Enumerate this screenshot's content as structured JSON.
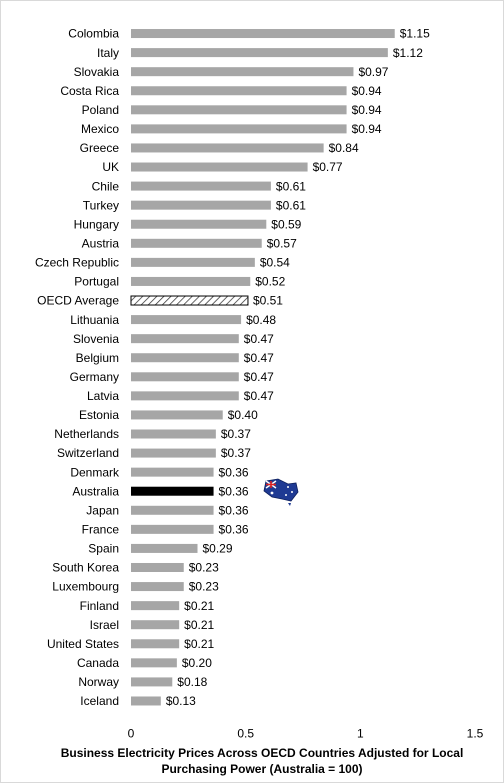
{
  "chart_data": {
    "type": "hbar",
    "title": "Business Electricity Prices Across OECD Countries Adjusted for Local Purchasing Power (Australia = 100)",
    "categories": [
      "Colombia",
      "Italy",
      "Slovakia",
      "Costa Rica",
      "Poland",
      "Mexico",
      "Greece",
      "UK",
      "Chile",
      "Turkey",
      "Hungary",
      "Austria",
      "Czech Republic",
      "Portugal",
      "OECD Average",
      "Lithuania",
      "Slovenia",
      "Belgium",
      "Germany",
      "Latvia",
      "Estonia",
      "Netherlands",
      "Switzerland",
      "Denmark",
      "Australia",
      "Japan",
      "France",
      "Spain",
      "South Korea",
      "Luxembourg",
      "Finland",
      "Israel",
      "United States",
      "Canada",
      "Norway",
      "Iceland"
    ],
    "values": [
      1.15,
      1.12,
      0.97,
      0.94,
      0.94,
      0.94,
      0.84,
      0.77,
      0.61,
      0.61,
      0.59,
      0.57,
      0.54,
      0.52,
      0.51,
      0.48,
      0.47,
      0.47,
      0.47,
      0.47,
      0.4,
      0.37,
      0.37,
      0.36,
      0.36,
      0.36,
      0.36,
      0.29,
      0.23,
      0.23,
      0.21,
      0.21,
      0.21,
      0.2,
      0.18,
      0.13
    ],
    "value_labels": [
      "$1.15",
      "$1.12",
      "$0.97",
      "$0.94",
      "$0.94",
      "$0.94",
      "$0.84",
      "$0.77",
      "$0.61",
      "$0.61",
      "$0.59",
      "$0.57",
      "$0.54",
      "$0.52",
      "$0.51",
      "$0.48",
      "$0.47",
      "$0.47",
      "$0.47",
      "$0.47",
      "$0.40",
      "$0.37",
      "$0.37",
      "$0.36",
      "$0.36",
      "$0.36",
      "$0.36",
      "$0.29",
      "$0.23",
      "$0.23",
      "$0.21",
      "$0.21",
      "$0.21",
      "$0.20",
      "$0.18",
      "$0.13"
    ],
    "colors": [
      "#a6a6a6",
      "#a6a6a6",
      "#a6a6a6",
      "#a6a6a6",
      "#a6a6a6",
      "#a6a6a6",
      "#a6a6a6",
      "#a6a6a6",
      "#a6a6a6",
      "#a6a6a6",
      "#a6a6a6",
      "#a6a6a6",
      "#a6a6a6",
      "#a6a6a6",
      "hatch",
      "#a6a6a6",
      "#a6a6a6",
      "#a6a6a6",
      "#a6a6a6",
      "#a6a6a6",
      "#a6a6a6",
      "#a6a6a6",
      "#a6a6a6",
      "#a6a6a6",
      "#000000",
      "#a6a6a6",
      "#a6a6a6",
      "#a6a6a6",
      "#a6a6a6",
      "#a6a6a6",
      "#a6a6a6",
      "#a6a6a6",
      "#a6a6a6",
      "#a6a6a6",
      "#a6a6a6",
      "#a6a6a6"
    ],
    "xlim": [
      0,
      1.5
    ],
    "xticks": [
      0,
      0.5,
      1,
      1.5
    ],
    "grid": false
  }
}
